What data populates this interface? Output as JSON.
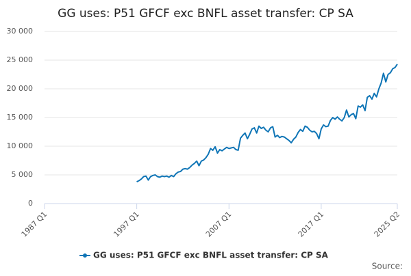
{
  "chart_data": {
    "type": "line",
    "title": "GG uses: P51 GFCF exc BNFL asset transfer: CP SA",
    "footer": "Source:",
    "categories": [
      "1987 Q1",
      null,
      null,
      null,
      null,
      null,
      null,
      null,
      null,
      null,
      null,
      null,
      null,
      null,
      null,
      null,
      null,
      null,
      null,
      null,
      null,
      null,
      null,
      null,
      null,
      null,
      null,
      null,
      null,
      null,
      null,
      null,
      null,
      null,
      null,
      null,
      null,
      null,
      null,
      null,
      "1997 Q1",
      null,
      null,
      null,
      null,
      null,
      null,
      null,
      null,
      null,
      null,
      null,
      null,
      null,
      null,
      null,
      null,
      null,
      null,
      null,
      null,
      null,
      null,
      null,
      null,
      null,
      null,
      null,
      null,
      null,
      null,
      null,
      null,
      null,
      null,
      null,
      null,
      null,
      null,
      null,
      "2007 Q1",
      null,
      null,
      null,
      null,
      null,
      null,
      null,
      null,
      null,
      null,
      null,
      null,
      null,
      null,
      null,
      null,
      null,
      null,
      null,
      null,
      null,
      null,
      null,
      null,
      null,
      null,
      null,
      null,
      null,
      null,
      null,
      null,
      null,
      null,
      null,
      null,
      null,
      null,
      null,
      "2017 Q1",
      null,
      null,
      null,
      null,
      null,
      null,
      null,
      null,
      null,
      null,
      null,
      null,
      null,
      null,
      null,
      null,
      null,
      null,
      null,
      null,
      null,
      null,
      null,
      null,
      null,
      null,
      null,
      null,
      null,
      null,
      null,
      null,
      "2025 Q2"
    ],
    "series": [
      {
        "name": "GG uses: P51 GFCF exc BNFL asset transfer: CP SA",
        "color": "#0f75b6",
        "values": [
          null,
          null,
          null,
          null,
          null,
          null,
          null,
          null,
          null,
          null,
          null,
          null,
          null,
          null,
          null,
          null,
          null,
          null,
          null,
          null,
          null,
          null,
          null,
          null,
          null,
          null,
          null,
          null,
          null,
          null,
          null,
          null,
          null,
          null,
          null,
          null,
          null,
          null,
          null,
          null,
          3800,
          4000,
          4300,
          4700,
          4800,
          4100,
          4700,
          4900,
          5000,
          4700,
          4600,
          4800,
          4700,
          4800,
          4600,
          4900,
          4700,
          5200,
          5500,
          5600,
          6000,
          6100,
          6000,
          6300,
          6700,
          7000,
          7400,
          6600,
          7400,
          7600,
          8000,
          8600,
          9600,
          9300,
          9900,
          8800,
          9400,
          9200,
          9500,
          9800,
          9600,
          9700,
          9800,
          9400,
          9300,
          11400,
          11900,
          12300,
          11300,
          12100,
          13000,
          13200,
          12300,
          13500,
          13100,
          13300,
          12800,
          12500,
          13200,
          13400,
          11600,
          11900,
          11500,
          11700,
          11600,
          11300,
          11000,
          10600,
          11200,
          11600,
          12400,
          12900,
          12600,
          13500,
          13300,
          12800,
          12500,
          12600,
          12200,
          11300,
          13000,
          13700,
          13400,
          13500,
          14500,
          15000,
          14700,
          15100,
          14700,
          14400,
          15000,
          16300,
          15100,
          15500,
          15700,
          14800,
          17000,
          16800,
          17200,
          16200,
          18500,
          18800,
          18200,
          19200,
          18600,
          20000,
          21000,
          22700,
          21200,
          22500,
          22800,
          23500,
          23700,
          24300
        ]
      }
    ],
    "ylim": [
      0,
      30000
    ],
    "yticks": [
      0,
      {
        "value": 5000,
        "label": "5 000"
      },
      {
        "value": 10000,
        "label": "10 000"
      },
      {
        "value": 15000,
        "label": "15 000"
      },
      {
        "value": 20000,
        "label": "20 000"
      },
      {
        "value": 25000,
        "label": "25 000"
      },
      {
        "value": 30000,
        "label": "30 000"
      }
    ],
    "grid": true,
    "legend": "bottom"
  }
}
